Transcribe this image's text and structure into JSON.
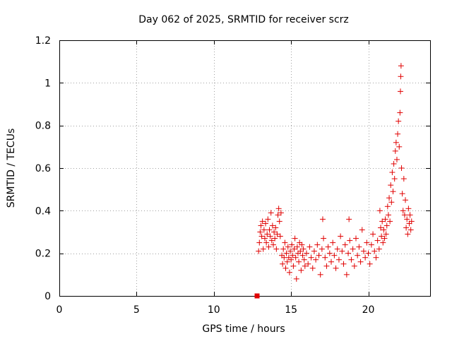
{
  "chart_data": {
    "type": "scatter",
    "title": "Day 062 of 2025, SRMTID for receiver scrz",
    "xlabel": "GPS time / hours",
    "ylabel": "SRMTID / TECUs",
    "xlim": [
      0,
      24
    ],
    "ylim": [
      0,
      1.2
    ],
    "grid": true,
    "x_ticks": [
      0,
      5,
      10,
      15,
      20
    ],
    "x_tick_labels": [
      "0",
      "5",
      "10",
      "15",
      "20"
    ],
    "y_ticks": [
      0,
      0.2,
      0.4,
      0.6,
      0.8,
      1.0,
      1.2
    ],
    "y_tick_labels": [
      "0",
      "0.2",
      "0.4",
      "0.6",
      "0.8",
      "1",
      "1.2"
    ],
    "marker": "plus",
    "color": "#e00000",
    "series": [
      {
        "name": "SRMTID",
        "points": [
          [
            12.8,
            0.0
          ],
          [
            12.9,
            0.21
          ],
          [
            12.95,
            0.25
          ],
          [
            13.0,
            0.3
          ],
          [
            13.05,
            0.33
          ],
          [
            13.1,
            0.28
          ],
          [
            13.15,
            0.35
          ],
          [
            13.2,
            0.22
          ],
          [
            13.25,
            0.31
          ],
          [
            13.3,
            0.27
          ],
          [
            13.35,
            0.34
          ],
          [
            13.4,
            0.25
          ],
          [
            13.45,
            0.29
          ],
          [
            13.5,
            0.36
          ],
          [
            13.55,
            0.23
          ],
          [
            13.6,
            0.31
          ],
          [
            13.65,
            0.28
          ],
          [
            13.7,
            0.39
          ],
          [
            13.75,
            0.26
          ],
          [
            13.8,
            0.33
          ],
          [
            13.85,
            0.24
          ],
          [
            13.9,
            0.3
          ],
          [
            13.95,
            0.27
          ],
          [
            14.0,
            0.32
          ],
          [
            14.05,
            0.22
          ],
          [
            14.1,
            0.29
          ],
          [
            14.15,
            0.38
          ],
          [
            14.2,
            0.41
          ],
          [
            14.25,
            0.35
          ],
          [
            14.3,
            0.28
          ],
          [
            14.35,
            0.39
          ],
          [
            14.4,
            0.19
          ],
          [
            14.45,
            0.15
          ],
          [
            14.5,
            0.22
          ],
          [
            14.55,
            0.18
          ],
          [
            14.6,
            0.25
          ],
          [
            14.65,
            0.13
          ],
          [
            14.7,
            0.2
          ],
          [
            14.75,
            0.16
          ],
          [
            14.8,
            0.23
          ],
          [
            14.85,
            0.18
          ],
          [
            14.9,
            0.11
          ],
          [
            14.95,
            0.21
          ],
          [
            15.0,
            0.17
          ],
          [
            15.05,
            0.24
          ],
          [
            15.1,
            0.19
          ],
          [
            15.15,
            0.14
          ],
          [
            15.2,
            0.22
          ],
          [
            15.25,
            0.27
          ],
          [
            15.3,
            0.18
          ],
          [
            15.35,
            0.08
          ],
          [
            15.4,
            0.23
          ],
          [
            15.45,
            0.2
          ],
          [
            15.5,
            0.16
          ],
          [
            15.55,
            0.25
          ],
          [
            15.6,
            0.21
          ],
          [
            15.65,
            0.12
          ],
          [
            15.7,
            0.24
          ],
          [
            15.75,
            0.19
          ],
          [
            15.8,
            0.22
          ],
          [
            15.85,
            0.17
          ],
          [
            15.9,
            0.14
          ],
          [
            16.0,
            0.2
          ],
          [
            16.1,
            0.15
          ],
          [
            16.2,
            0.23
          ],
          [
            16.3,
            0.18
          ],
          [
            16.4,
            0.13
          ],
          [
            16.5,
            0.21
          ],
          [
            16.6,
            0.17
          ],
          [
            16.7,
            0.24
          ],
          [
            16.8,
            0.19
          ],
          [
            16.9,
            0.1
          ],
          [
            17.0,
            0.22
          ],
          [
            17.05,
            0.36
          ],
          [
            17.1,
            0.27
          ],
          [
            17.2,
            0.18
          ],
          [
            17.3,
            0.14
          ],
          [
            17.4,
            0.23
          ],
          [
            17.5,
            0.2
          ],
          [
            17.6,
            0.16
          ],
          [
            17.7,
            0.25
          ],
          [
            17.8,
            0.19
          ],
          [
            17.9,
            0.13
          ],
          [
            18.0,
            0.22
          ],
          [
            18.1,
            0.17
          ],
          [
            18.2,
            0.28
          ],
          [
            18.3,
            0.21
          ],
          [
            18.4,
            0.15
          ],
          [
            18.5,
            0.24
          ],
          [
            18.6,
            0.1
          ],
          [
            18.7,
            0.2
          ],
          [
            18.75,
            0.36
          ],
          [
            18.8,
            0.26
          ],
          [
            18.9,
            0.17
          ],
          [
            19.0,
            0.22
          ],
          [
            19.1,
            0.14
          ],
          [
            19.2,
            0.27
          ],
          [
            19.3,
            0.19
          ],
          [
            19.4,
            0.23
          ],
          [
            19.5,
            0.16
          ],
          [
            19.6,
            0.31
          ],
          [
            19.7,
            0.21
          ],
          [
            19.8,
            0.18
          ],
          [
            19.9,
            0.25
          ],
          [
            20.0,
            0.2
          ],
          [
            20.1,
            0.15
          ],
          [
            20.2,
            0.24
          ],
          [
            20.3,
            0.29
          ],
          [
            20.4,
            0.21
          ],
          [
            20.5,
            0.18
          ],
          [
            20.6,
            0.26
          ],
          [
            20.7,
            0.22
          ],
          [
            20.75,
            0.4
          ],
          [
            20.8,
            0.32
          ],
          [
            20.85,
            0.28
          ],
          [
            20.9,
            0.35
          ],
          [
            20.95,
            0.25
          ],
          [
            21.0,
            0.31
          ],
          [
            21.05,
            0.27
          ],
          [
            21.1,
            0.36
          ],
          [
            21.15,
            0.29
          ],
          [
            21.2,
            0.33
          ],
          [
            21.25,
            0.42
          ],
          [
            21.3,
            0.38
          ],
          [
            21.35,
            0.46
          ],
          [
            21.4,
            0.35
          ],
          [
            21.45,
            0.52
          ],
          [
            21.5,
            0.44
          ],
          [
            21.55,
            0.58
          ],
          [
            21.6,
            0.49
          ],
          [
            21.65,
            0.62
          ],
          [
            21.7,
            0.55
          ],
          [
            21.75,
            0.68
          ],
          [
            21.8,
            0.72
          ],
          [
            21.85,
            0.64
          ],
          [
            21.9,
            0.76
          ],
          [
            21.95,
            0.82
          ],
          [
            22.0,
            0.7
          ],
          [
            22.05,
            0.86
          ],
          [
            22.08,
            0.96
          ],
          [
            22.1,
            1.03
          ],
          [
            22.12,
            1.08
          ],
          [
            22.15,
            0.6
          ],
          [
            22.2,
            0.48
          ],
          [
            22.25,
            0.4
          ],
          [
            22.3,
            0.55
          ],
          [
            22.35,
            0.38
          ],
          [
            22.4,
            0.45
          ],
          [
            22.45,
            0.32
          ],
          [
            22.5,
            0.36
          ],
          [
            22.55,
            0.29
          ],
          [
            22.6,
            0.41
          ],
          [
            22.65,
            0.34
          ],
          [
            22.7,
            0.38
          ],
          [
            22.75,
            0.31
          ],
          [
            22.8,
            0.35
          ]
        ]
      }
    ]
  }
}
